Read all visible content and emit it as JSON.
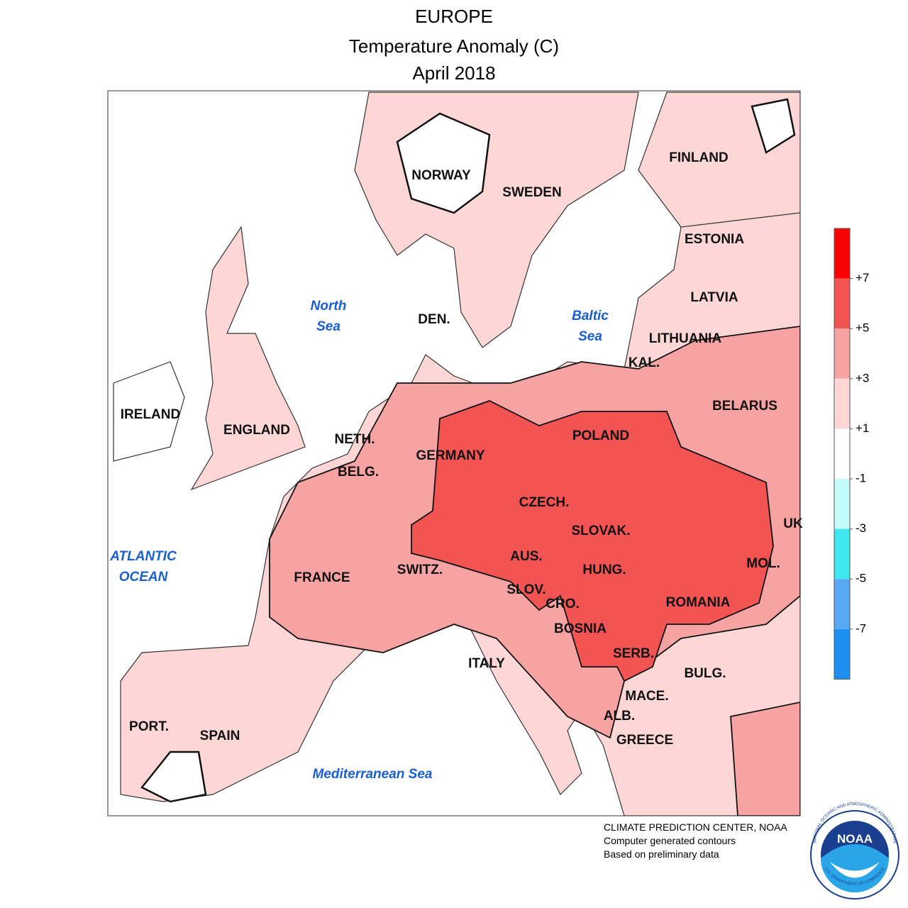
{
  "header": {
    "title_lines": [
      "EUROPE",
      "Temperature Anomaly (C)",
      "April 2018"
    ]
  },
  "map": {
    "country_labels": [
      "NORWAY",
      "SWEDEN",
      "FINLAND",
      "ESTONIA",
      "LATVIA",
      "LITHUANIA",
      "KAL.",
      "BELARUS",
      "DEN.",
      "IRELAND",
      "ENGLAND",
      "NETH.",
      "BELG.",
      "GERMANY",
      "POLAND",
      "CZECH.",
      "SLOVAK.",
      "UK",
      "AUS.",
      "HUNG.",
      "SWITZ.",
      "FRANCE",
      "MOL.",
      "SLOV.",
      "CRO.",
      "ROMANIA",
      "BOSNIA",
      "SERB.",
      "ITALY",
      "BULG.",
      "MACE.",
      "ALB.",
      "GREECE",
      "PORT.",
      "SPAIN"
    ],
    "sea_labels": [
      [
        "North",
        "Sea"
      ],
      [
        "Baltic",
        "Sea"
      ],
      [
        "ATLANTIC",
        "OCEAN"
      ],
      [
        "Mediterranean Sea"
      ]
    ]
  },
  "legend": {
    "colors": [
      "#ff0000",
      "#f25454",
      "#f7a3a3",
      "#fdd6d6",
      "#ffffff",
      "#c6fbfb",
      "#3fe7ef",
      "#58a8f4",
      "#1d8ef2"
    ],
    "ticks": [
      {
        "value": 7,
        "label": "+7"
      },
      {
        "value": 5,
        "label": "+5"
      },
      {
        "value": 3,
        "label": "+3"
      },
      {
        "value": 1,
        "label": "+1"
      },
      -1,
      -3,
      -5,
      -7
    ]
  },
  "footer": {
    "lines": [
      "CLIMATE PREDICTION CENTER, NOAA",
      "Computer generated contours",
      "Based on preliminary data"
    ]
  },
  "logo": {
    "text": "NOAA",
    "ring_top": "NATIONAL OCEANIC AND ATMOSPHERIC ADMINISTRATION",
    "ring_bottom": "U.S. DEPARTMENT OF COMMERCE"
  }
}
